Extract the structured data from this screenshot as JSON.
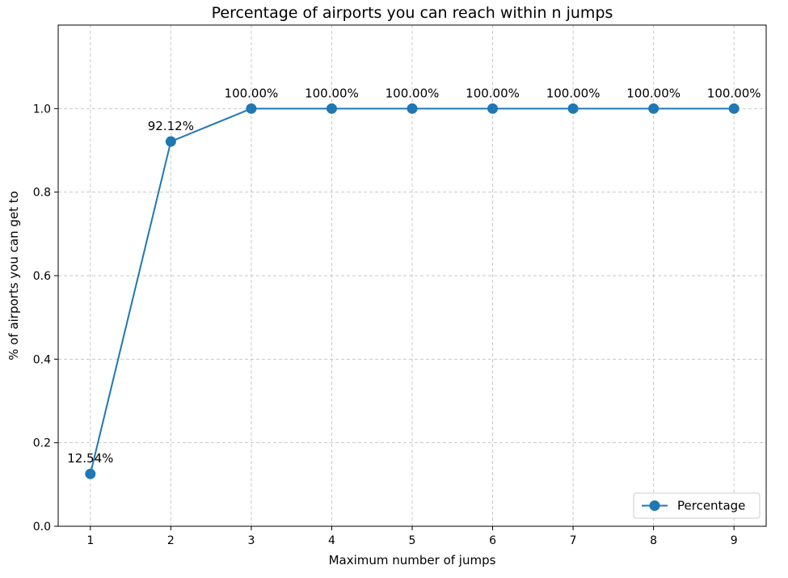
{
  "chart_data": {
    "type": "line",
    "title": "Percentage of airports you can reach within n jumps",
    "xlabel": "Maximum number of jumps",
    "ylabel": "% of airports you can get to",
    "x": [
      1,
      2,
      3,
      4,
      5,
      6,
      7,
      8,
      9
    ],
    "xticks": [
      "1",
      "2",
      "3",
      "4",
      "5",
      "6",
      "7",
      "8",
      "9"
    ],
    "yticks": [
      "0.0",
      "0.2",
      "0.4",
      "0.6",
      "0.8",
      "1.0"
    ],
    "ytick_values": [
      0.0,
      0.2,
      0.4,
      0.6,
      0.8,
      1.0
    ],
    "xlim": [
      0.6,
      9.4
    ],
    "ylim": [
      0.0,
      1.2
    ],
    "grid": true,
    "legend_position": "lower-right",
    "series": [
      {
        "name": "Percentage",
        "color": "#1f77b4",
        "marker": "circle",
        "values": [
          0.1254,
          0.9212,
          1.0,
          1.0,
          1.0,
          1.0,
          1.0,
          1.0,
          1.0
        ],
        "labels": [
          "12.54%",
          "92.12%",
          "100.00%",
          "100.00%",
          "100.00%",
          "100.00%",
          "100.00%",
          "100.00%",
          "100.00%"
        ]
      }
    ]
  }
}
